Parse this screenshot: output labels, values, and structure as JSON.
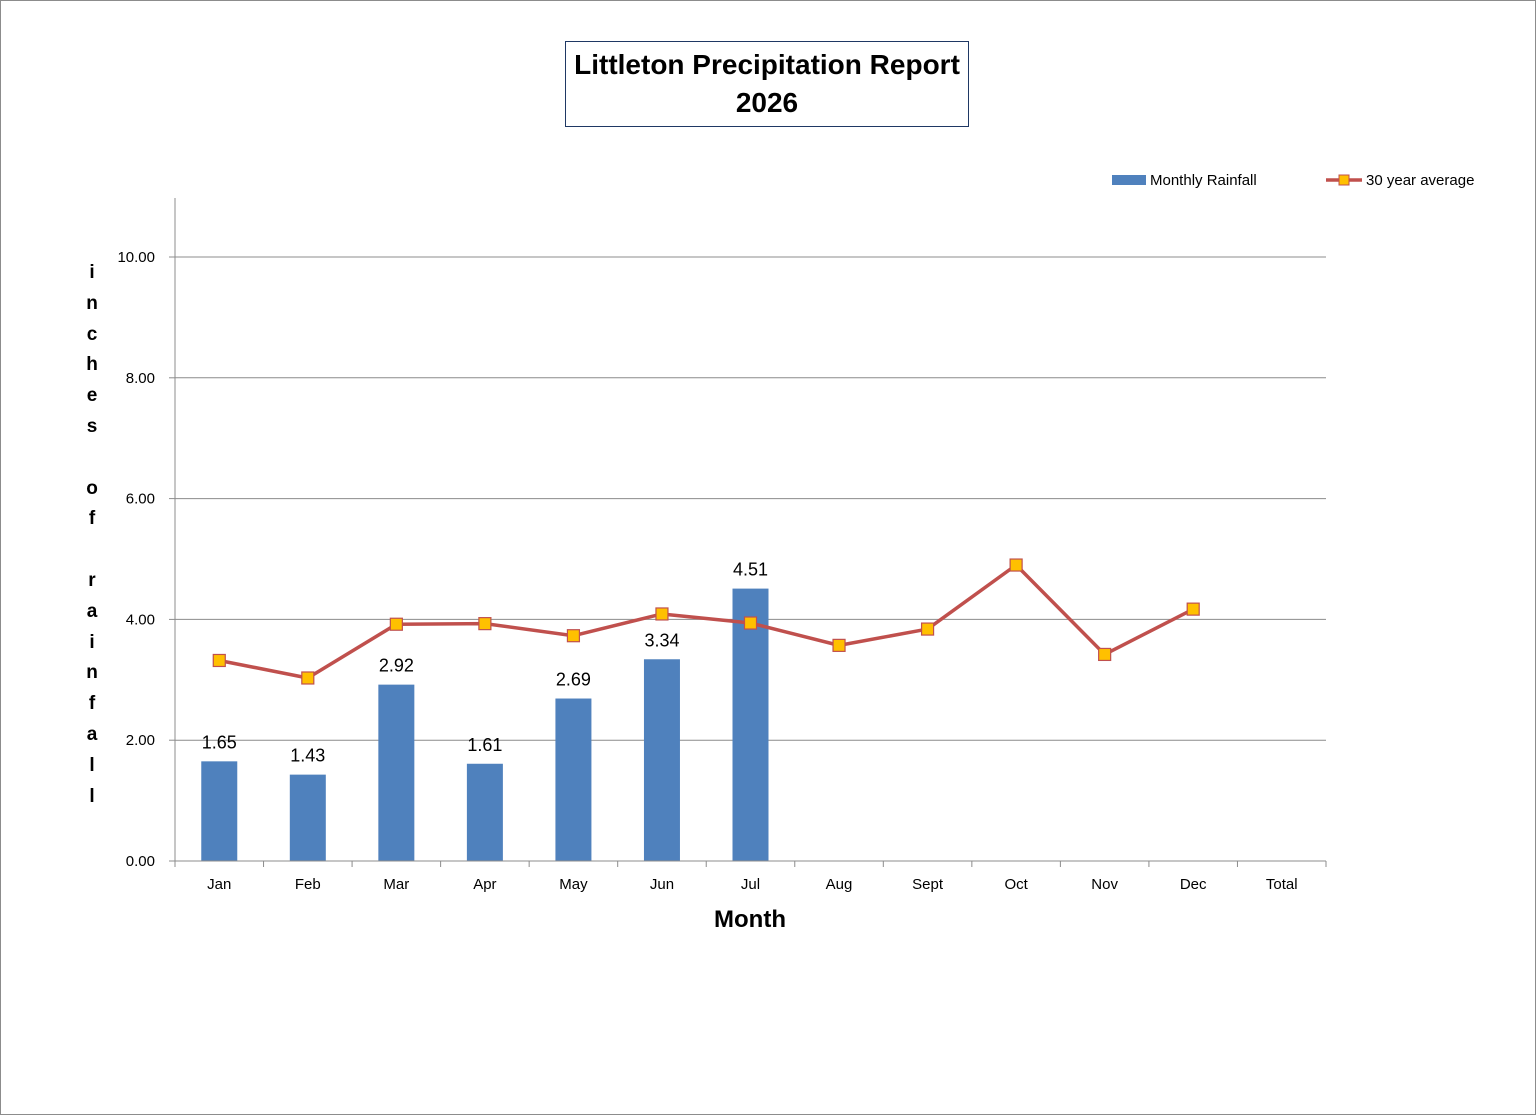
{
  "chart_data": {
    "type": "bar",
    "title": [
      "Littleton Precipitation Report",
      "2026"
    ],
    "xlabel": "Month",
    "ylabel": "inches of rainfall",
    "ylim": [
      0,
      11
    ],
    "yticks": [
      "0.00",
      "2.00",
      "4.00",
      "6.00",
      "8.00",
      "10.00"
    ],
    "ytick_values": [
      0,
      2,
      4,
      6,
      8,
      10
    ],
    "grid": true,
    "legend_position": "top-right",
    "categories": [
      "Jan",
      "Feb",
      "Mar",
      "Apr",
      "May",
      "Jun",
      "Jul",
      "Aug",
      "Sept",
      "Oct",
      "Nov",
      "Dec",
      "Total"
    ],
    "series": [
      {
        "name": "Monthly Rainfall",
        "type": "bar",
        "color": "#4f81bd",
        "values": [
          1.65,
          1.43,
          2.92,
          1.61,
          2.69,
          3.34,
          4.51,
          null,
          null,
          null,
          null,
          null,
          null
        ],
        "labels": [
          "1.65",
          "1.43",
          "2.92",
          "1.61",
          "2.69",
          "3.34",
          "4.51",
          "",
          "",
          "",
          "",
          "",
          ""
        ]
      },
      {
        "name": "30 year average",
        "type": "line",
        "color": "#c0504d",
        "marker_fill": "#ffc000",
        "marker_stroke": "#c0504d",
        "values": [
          3.32,
          3.03,
          3.92,
          3.93,
          3.73,
          4.09,
          3.94,
          3.57,
          3.84,
          4.9,
          3.42,
          4.17,
          null
        ]
      }
    ]
  }
}
